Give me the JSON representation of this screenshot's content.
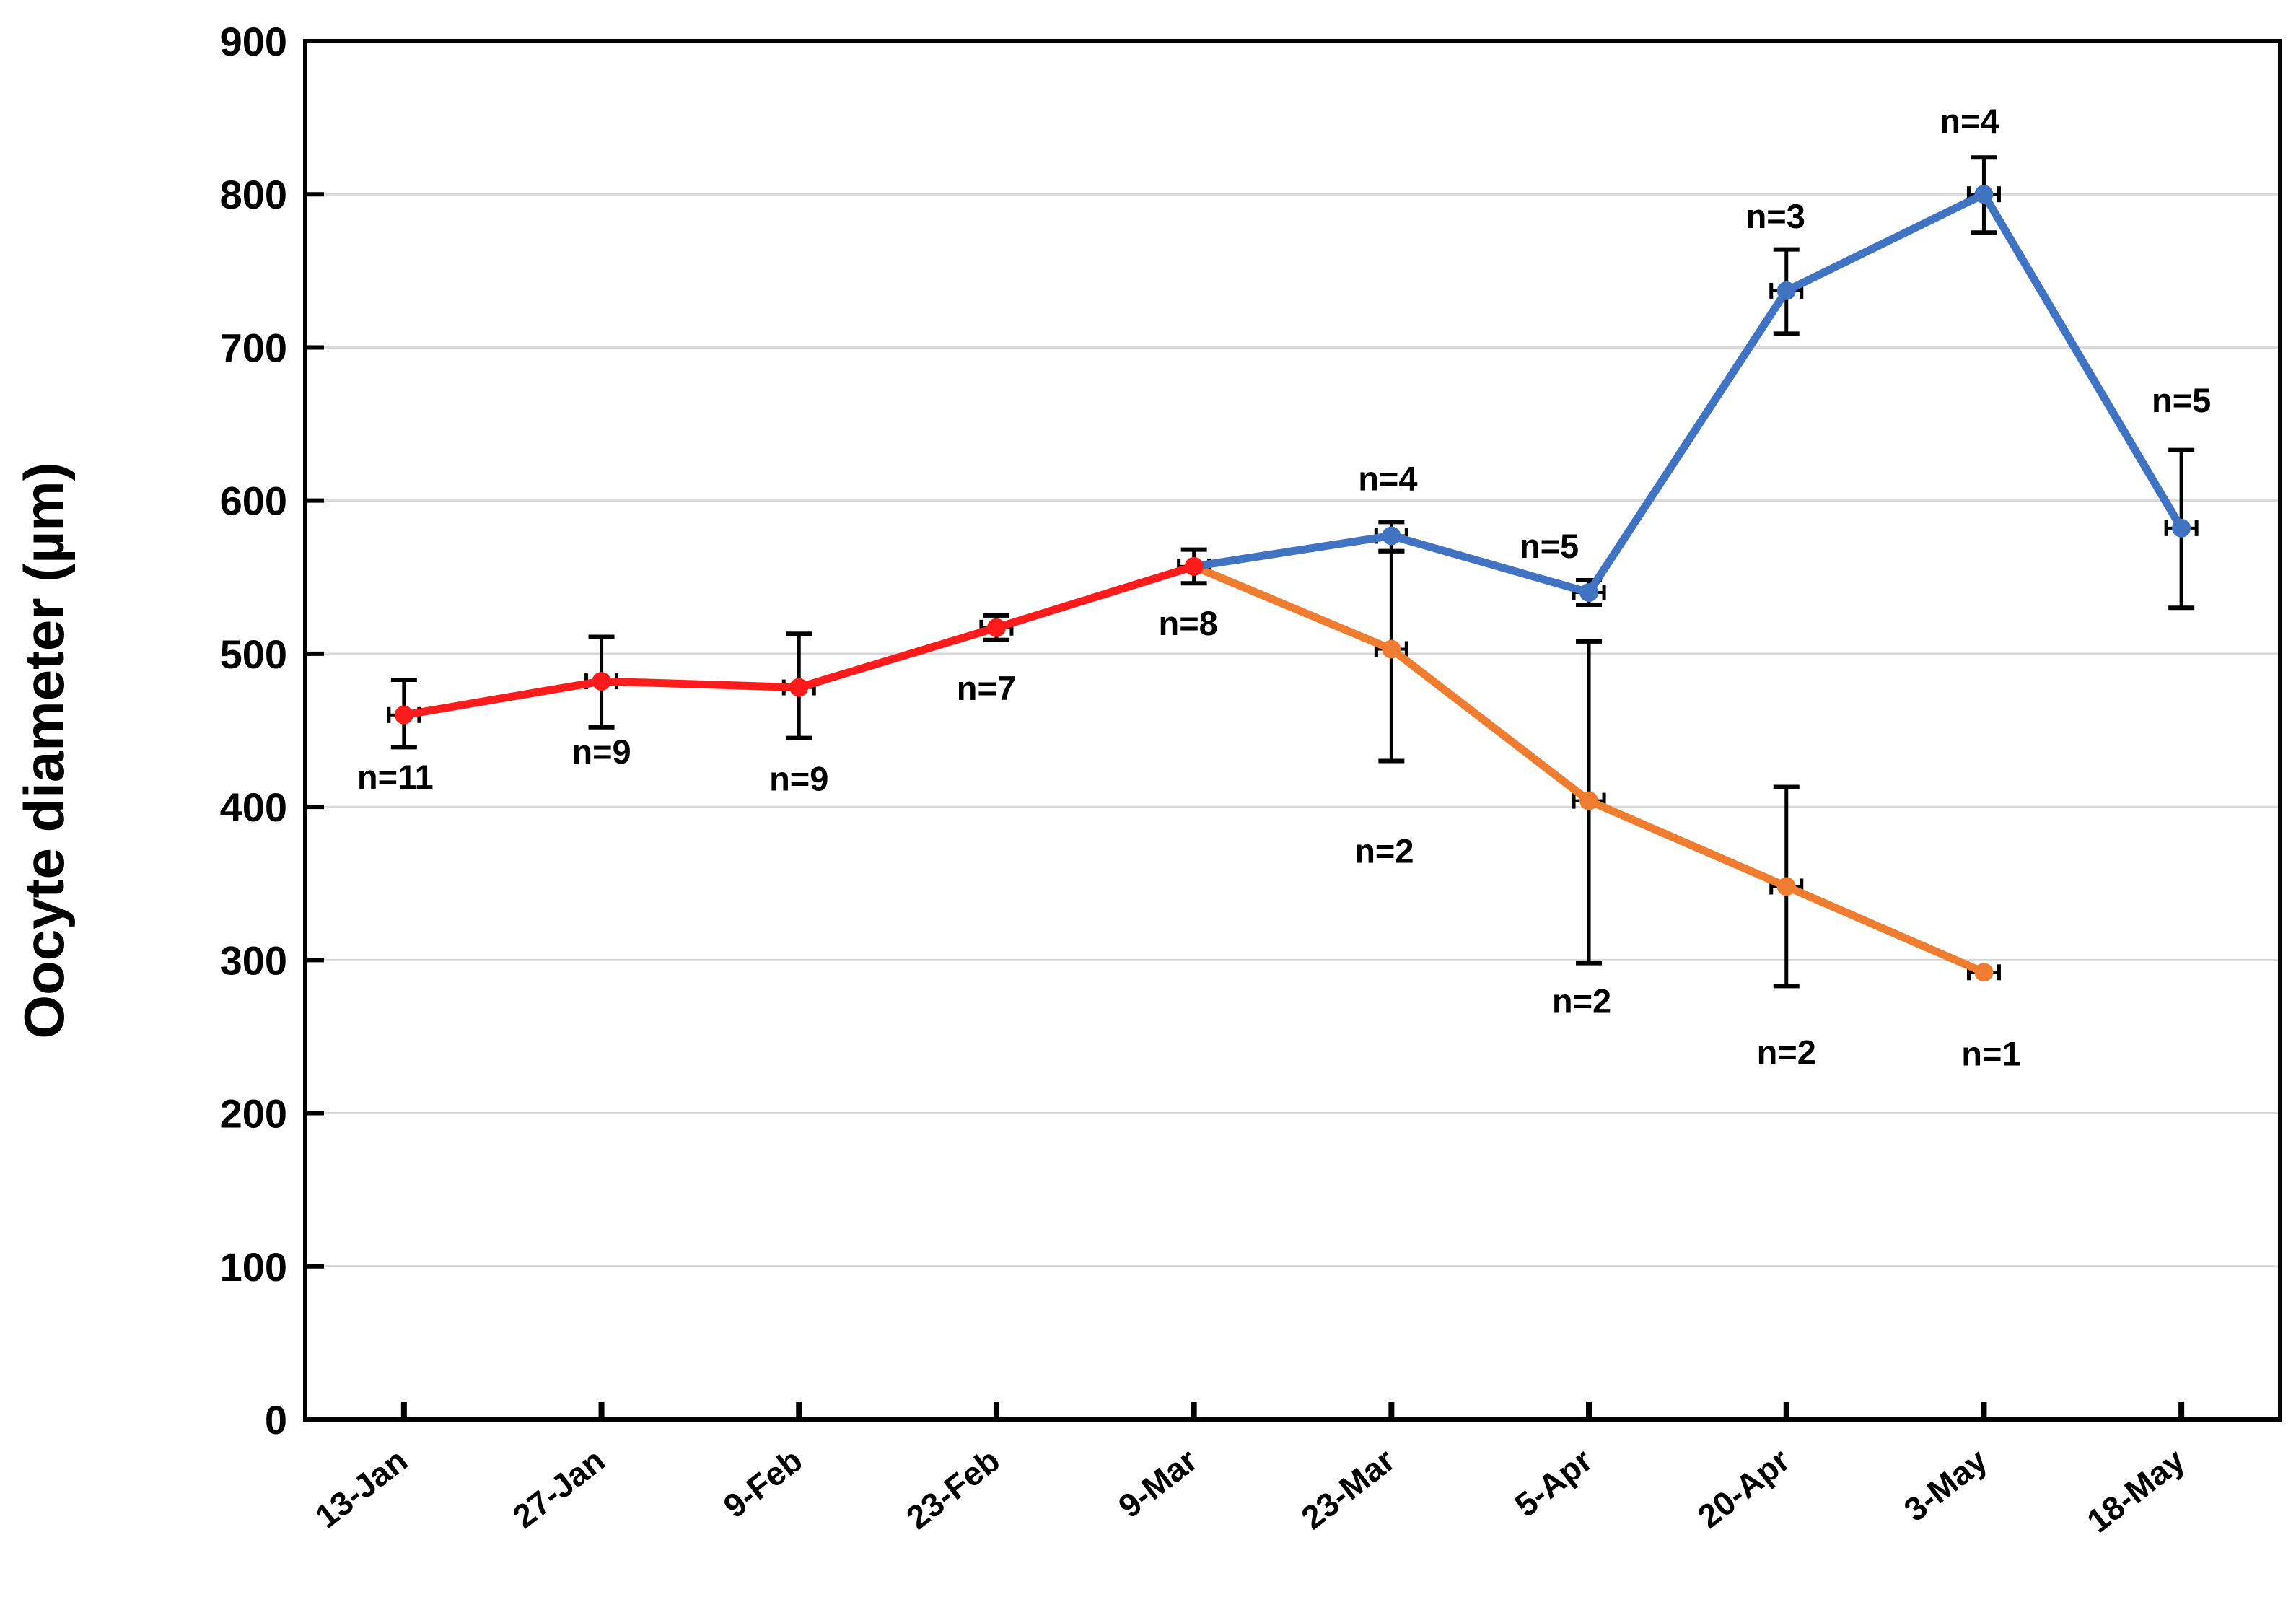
{
  "chart_data": {
    "type": "line",
    "title": "",
    "xlabel": "",
    "ylabel": "Oocyte diameter (µm)",
    "ylim": [
      0,
      900
    ],
    "yticks": [
      900,
      800,
      700,
      600,
      500,
      400,
      300,
      200,
      100,
      0
    ],
    "grid": true,
    "legend_position": "none",
    "categories": [
      "13-Jan",
      "27-Jan",
      "9-Feb",
      "23-Feb",
      "9-Mar",
      "23-Mar",
      "5-Apr",
      "20-Apr",
      "3-May",
      "18-May"
    ],
    "colors": {
      "grid": "#d9d9d9",
      "axis": "#000000",
      "error_bar": "#000000",
      "red_series": "#fe1b1c",
      "blue_series": "#4074c2",
      "orange_series": "#ee7d31"
    },
    "series": [
      {
        "name": "red-series",
        "color": "#fe1b1c",
        "points": [
          {
            "cat": 0,
            "v": 460,
            "eu": 23,
            "ed": 21,
            "n": "n=11",
            "ndx": -12,
            "ndy": 86
          },
          {
            "cat": 1,
            "v": 482,
            "eu": 29,
            "ed": 30,
            "n": "n=9",
            "ndx": 0,
            "ndy": 98
          },
          {
            "cat": 2,
            "v": 478,
            "eu": 35,
            "ed": 33,
            "n": "n=9",
            "ndx": 0,
            "ndy": 127
          },
          {
            "cat": 3,
            "v": 517,
            "eu": 8,
            "ed": 8,
            "n": "n=7",
            "ndx": -14,
            "ndy": 84
          },
          {
            "cat": 4,
            "v": 557,
            "eu": 11,
            "ed": 11,
            "n": "n=8",
            "ndx": -8,
            "ndy": 79
          }
        ]
      },
      {
        "name": "blue-series",
        "color": "#4074c2",
        "points": [
          {
            "cat": 4,
            "v": 557,
            "eu": 0,
            "ed": 0,
            "n": "",
            "marker": false
          },
          {
            "cat": 5,
            "v": 577,
            "eu": 9,
            "ed": 10,
            "n": "n=4",
            "ndx": -5,
            "ndy": -79
          },
          {
            "cat": 6,
            "v": 540,
            "eu": 8,
            "ed": 8,
            "n": "n=5",
            "ndx": -55,
            "ndy": -64
          },
          {
            "cat": 7,
            "v": 737,
            "eu": 27,
            "ed": 28,
            "n": "n=3",
            "ndx": -15,
            "ndy": -103
          },
          {
            "cat": 8,
            "v": 800,
            "eu": 24,
            "ed": 25,
            "n": "n=4",
            "ndx": -20,
            "ndy": -101
          },
          {
            "cat": 9,
            "v": 582,
            "eu": 51,
            "ed": 52,
            "n": "n=5",
            "ndx": 0,
            "ndy": -177
          }
        ]
      },
      {
        "name": "orange-series",
        "color": "#ee7d31",
        "points": [
          {
            "cat": 4,
            "v": 557,
            "eu": 0,
            "ed": 0,
            "n": "",
            "marker": false
          },
          {
            "cat": 5,
            "v": 503,
            "eu": 64,
            "ed": 73,
            "n": "n=2",
            "ndx": -10,
            "ndy": 280
          },
          {
            "cat": 6,
            "v": 404,
            "eu": 104,
            "ed": 106,
            "n": "n=2",
            "ndx": -10,
            "ndy": 278
          },
          {
            "cat": 7,
            "v": 348,
            "eu": 65,
            "ed": 65,
            "n": "n=2",
            "ndx": 0,
            "ndy": 230
          },
          {
            "cat": 8,
            "v": 292,
            "eu": 0,
            "ed": 0,
            "n": "n=1",
            "ndx": 10,
            "ndy": 113
          }
        ]
      }
    ]
  }
}
